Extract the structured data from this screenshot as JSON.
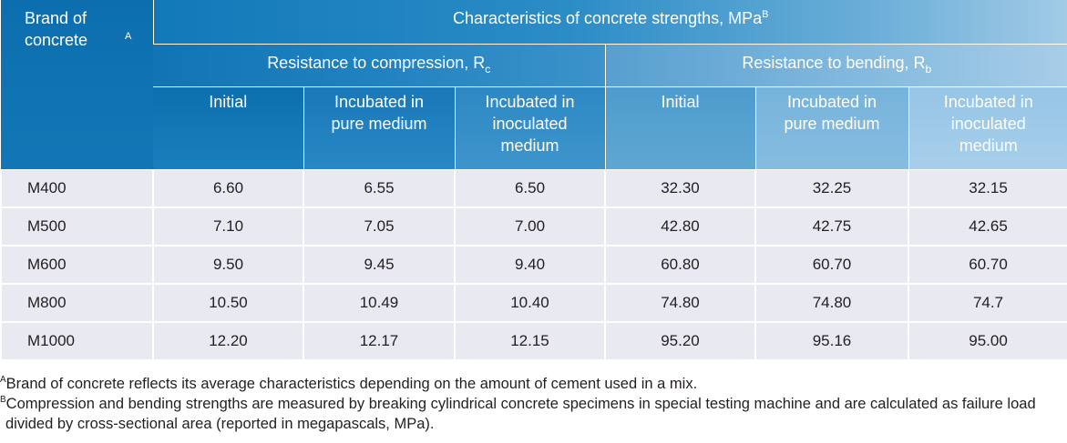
{
  "table": {
    "brand_header": "Brand of concrete",
    "brand_header_note": "A",
    "characteristics_header": "Characteristics of concrete strengths, MPa",
    "characteristics_header_note": "B",
    "compression_header": "Resistance to compression, R",
    "compression_subscript": "c",
    "bending_header": "Resistance to bending, R",
    "bending_subscript": "b",
    "column_headers": [
      "Initial",
      "Incubated in pure medium",
      "Incubated in inoculated medium",
      "Initial",
      "Incubated in pure medium",
      "Incubated in inoculated medium"
    ],
    "rows": [
      {
        "brand": "M400",
        "values": [
          "6.60",
          "6.55",
          "6.50",
          "32.30",
          "32.25",
          "32.15"
        ]
      },
      {
        "brand": "M500",
        "values": [
          "7.10",
          "7.05",
          "7.00",
          "42.80",
          "42.75",
          "42.65"
        ]
      },
      {
        "brand": "M600",
        "values": [
          "9.50",
          "9.45",
          "9.40",
          "60.80",
          "60.70",
          "60.70"
        ]
      },
      {
        "brand": "M800",
        "values": [
          "10.50",
          "10.49",
          "10.40",
          "74.80",
          "74.80",
          "74.7"
        ]
      },
      {
        "brand": "M1000",
        "values": [
          "12.20",
          "12.17",
          "12.15",
          "95.20",
          "95.16",
          "95.00"
        ]
      }
    ]
  },
  "footnotes": {
    "a_marker": "A",
    "a_text": "Brand of concrete reflects its average characteristics depending on the amount of cement used in a mix.",
    "b_marker": "B",
    "b_text_line1": "Compression and bending strengths are measured by breaking cylindrical concrete specimens in special testing machine and are calculated as failure load",
    "b_text_line2": "divided by cross-sectional area (reported in megapascals, MPa)."
  },
  "colors": {
    "header_dark": "#0b72b3",
    "header_light": "#9cc6e4",
    "row_background": "#e8e9f1"
  }
}
